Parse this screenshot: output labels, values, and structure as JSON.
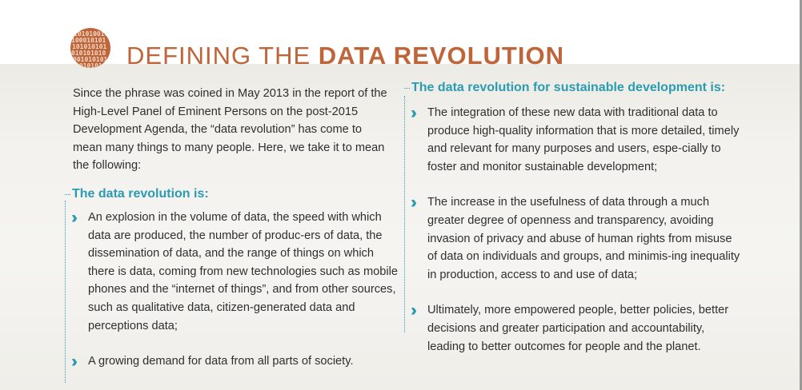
{
  "header": {
    "logo_icon": "binary-digits-circle-icon",
    "logo_color": "#c0643a",
    "title_light": "DEFINING THE ",
    "title_bold": "DATA REVOLUTION"
  },
  "intro": {
    "text": "Since the phrase was coined in May 2013 in the report of the High-Level Panel of Eminent Persons on the post-2015 Development Agenda, the “data revolution” has come to mean many things to many people. Here, we take it to mean the following:"
  },
  "left_section": {
    "heading": "The data revolution is:",
    "items": [
      {
        "text": "An explosion in the volume of data, the speed with which data are produced, the number of produc-ers of data, the dissemination of data, and the range of things on which there is data, coming from new technologies such as mobile phones and the “internet of things”, and from other sources, such as qualitative data, citizen-generated data and perceptions data;"
      },
      {
        "text": "A growing demand for data from all parts of society."
      }
    ]
  },
  "right_section": {
    "heading": "The data revolution for sustainable development is:",
    "items": [
      {
        "text": "The integration of these new data with traditional data to produce high-quality information that is more detailed, timely and relevant for many purposes and users, espe-cially to foster and monitor sustainable development;"
      },
      {
        "text": "The increase in the usefulness of data through a much greater degree of openness and transparency, avoiding invasion of privacy and abuse of human rights from misuse of data on individuals and groups, and minimis-ing inequality in production, access to and use of data;"
      },
      {
        "text": "Ultimately, more empowered people, better policies, better decisions and greater participation and accountability, leading to better outcomes for people and the planet."
      }
    ]
  },
  "colors": {
    "accent_orange": "#c0643a",
    "accent_teal": "#2b9bb1",
    "body_text": "#2f2f2f"
  }
}
